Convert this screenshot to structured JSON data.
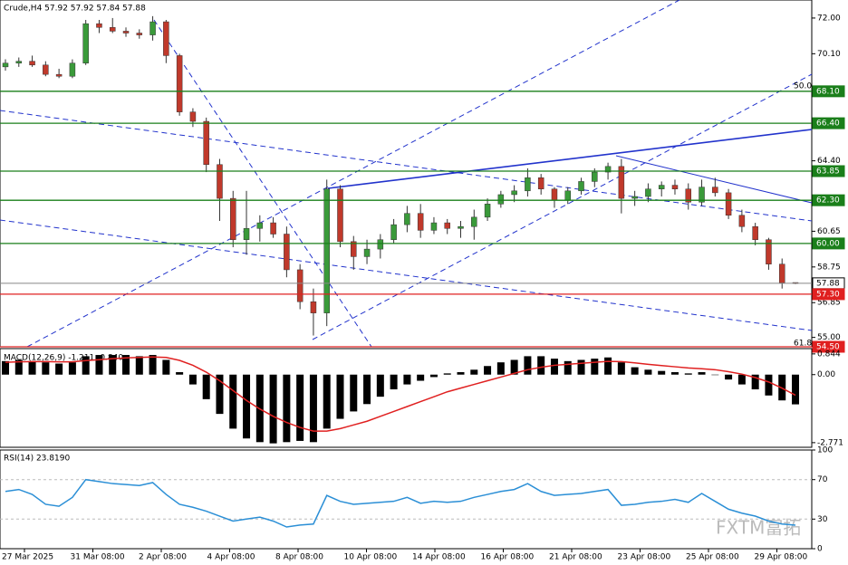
{
  "header": {
    "title": "Crude,H4  57.92 57.92 57.84 57.88",
    "watermark": "FXTM富拓"
  },
  "x_axis": {
    "labels": [
      "27 Mar 2025",
      "31 Mar 08:00",
      "2 Apr 08:00",
      "4 Apr 08:00",
      "8 Apr 08:00",
      "10 Apr 08:00",
      "14 Apr 08:00",
      "16 Apr 08:00",
      "21 Apr 08:00",
      "23 Apr 08:00",
      "25 Apr 08:00",
      "29 Apr 08:00"
    ]
  },
  "chart_data": [
    {
      "type": "candlestick",
      "bull_color": "#3a9a3a",
      "bear_color": "#c0392b",
      "ylim": [
        54.5,
        72.96
      ],
      "yticks": [
        {
          "value": 72,
          "label": "72.00"
        },
        {
          "value": 70.1,
          "label": "70.10"
        },
        {
          "value": 64.4,
          "label": "64.40"
        },
        {
          "value": 60.65,
          "label": "60.65"
        },
        {
          "value": 58.75,
          "label": "58.75"
        },
        {
          "value": 56.85,
          "label": "56.85"
        },
        {
          "value": 55,
          "label": "55.00"
        }
      ],
      "levels": [
        {
          "value": 68.1,
          "label": "68.10",
          "color": "#1a7f1a"
        },
        {
          "value": 66.4,
          "label": "66.40",
          "color": "#1a7f1a"
        },
        {
          "value": 63.85,
          "label": "63.85",
          "color": "#1a7f1a"
        },
        {
          "value": 62.3,
          "label": "62.30",
          "color": "#1a7f1a"
        },
        {
          "value": 60,
          "label": "60.00",
          "color": "#1a7f1a"
        },
        {
          "value": 57.88,
          "label": "57.88",
          "color": "#000000"
        },
        {
          "value": 57.3,
          "label": "57.30",
          "color": "#e02020"
        },
        {
          "value": 54.5,
          "label": "54.50",
          "color": "#e02020"
        }
      ],
      "annotations": [
        "50.0",
        "61.8"
      ],
      "ohlc": [
        [
          69.4,
          69.8,
          69.2,
          69.6
        ],
        [
          69.6,
          69.9,
          69.4,
          69.7
        ],
        [
          69.7,
          70.0,
          69.4,
          69.5
        ],
        [
          69.5,
          69.7,
          68.9,
          69.0
        ],
        [
          69.0,
          69.3,
          68.8,
          68.9
        ],
        [
          68.9,
          69.8,
          68.8,
          69.6
        ],
        [
          69.6,
          71.9,
          69.5,
          71.7
        ],
        [
          71.7,
          71.9,
          71.2,
          71.5
        ],
        [
          71.5,
          72.0,
          71.2,
          71.3
        ],
        [
          71.3,
          71.5,
          71.0,
          71.2
        ],
        [
          71.2,
          71.4,
          70.9,
          71.1
        ],
        [
          71.1,
          72.1,
          70.8,
          71.8
        ],
        [
          71.8,
          71.9,
          69.6,
          70.0
        ],
        [
          70.0,
          70.1,
          66.8,
          67.0
        ],
        [
          67.0,
          67.2,
          66.2,
          66.5
        ],
        [
          66.5,
          66.7,
          63.8,
          64.2
        ],
        [
          64.2,
          64.5,
          61.2,
          62.4
        ],
        [
          62.4,
          62.8,
          59.8,
          60.2
        ],
        [
          60.2,
          62.8,
          59.4,
          60.8
        ],
        [
          60.8,
          61.5,
          60.1,
          61.1
        ],
        [
          61.1,
          61.4,
          60.3,
          60.5
        ],
        [
          60.5,
          60.9,
          58.2,
          58.6
        ],
        [
          58.6,
          58.9,
          56.5,
          56.9
        ],
        [
          56.9,
          57.6,
          55.1,
          56.3
        ],
        [
          56.3,
          63.4,
          55.6,
          62.9
        ],
        [
          62.9,
          63.1,
          59.8,
          60.1
        ],
        [
          60.1,
          60.4,
          58.6,
          59.3
        ],
        [
          59.3,
          60.2,
          58.9,
          59.7
        ],
        [
          59.7,
          60.5,
          59.2,
          60.2
        ],
        [
          60.2,
          61.3,
          60.0,
          61.0
        ],
        [
          61.0,
          62.0,
          60.6,
          61.6
        ],
        [
          61.6,
          62.1,
          60.3,
          60.7
        ],
        [
          60.7,
          61.4,
          60.5,
          61.1
        ],
        [
          61.1,
          61.3,
          60.5,
          60.8
        ],
        [
          60.8,
          61.2,
          60.3,
          60.9
        ],
        [
          60.9,
          61.8,
          60.2,
          61.4
        ],
        [
          61.4,
          62.4,
          61.2,
          62.1
        ],
        [
          62.1,
          62.8,
          61.9,
          62.6
        ],
        [
          62.6,
          63.1,
          62.2,
          62.8
        ],
        [
          62.8,
          64.0,
          62.5,
          63.5
        ],
        [
          63.5,
          63.7,
          62.6,
          62.9
        ],
        [
          62.9,
          63.0,
          61.9,
          62.3
        ],
        [
          62.3,
          63.0,
          62.1,
          62.8
        ],
        [
          62.8,
          63.5,
          62.6,
          63.3
        ],
        [
          63.3,
          64.0,
          63.0,
          63.8
        ],
        [
          63.8,
          64.3,
          63.4,
          64.1
        ],
        [
          64.1,
          64.5,
          61.6,
          62.4
        ],
        [
          62.4,
          62.8,
          62.0,
          62.5
        ],
        [
          62.5,
          63.2,
          62.2,
          62.9
        ],
        [
          62.9,
          63.3,
          62.5,
          63.1
        ],
        [
          63.1,
          63.4,
          62.6,
          62.9
        ],
        [
          62.9,
          63.2,
          61.8,
          62.2
        ],
        [
          62.2,
          63.4,
          62.0,
          63.0
        ],
        [
          63.0,
          63.5,
          62.5,
          62.7
        ],
        [
          62.7,
          62.9,
          61.3,
          61.5
        ],
        [
          61.5,
          61.8,
          60.6,
          60.9
        ],
        [
          60.9,
          61.1,
          59.9,
          60.2
        ],
        [
          60.2,
          60.3,
          58.6,
          58.9
        ],
        [
          58.9,
          59.2,
          57.6,
          57.9
        ],
        [
          57.92,
          57.92,
          57.84,
          57.88
        ]
      ]
    },
    {
      "type": "macd",
      "title": "MACD(12,26,9) -1.211 -0.840",
      "ylim": [
        -2.96,
        1.06
      ],
      "yticks": [
        0.844,
        {
          "value": 0,
          "label": "0.00"
        },
        -2.771
      ],
      "series": [
        {
          "name": "MACD",
          "color": "#000000",
          "values": [
            0.55,
            0.6,
            0.55,
            0.5,
            0.45,
            0.5,
            0.75,
            0.8,
            0.8,
            0.8,
            0.75,
            0.8,
            0.6,
            0.1,
            -0.4,
            -1.0,
            -1.6,
            -2.2,
            -2.6,
            -2.75,
            -2.8,
            -2.75,
            -2.7,
            -2.75,
            -2.2,
            -1.8,
            -1.5,
            -1.2,
            -0.9,
            -0.6,
            -0.4,
            -0.25,
            -0.1,
            0.05,
            0.1,
            0.2,
            0.35,
            0.5,
            0.6,
            0.75,
            0.75,
            0.65,
            0.55,
            0.6,
            0.65,
            0.7,
            0.5,
            0.3,
            0.2,
            0.15,
            0.1,
            0.05,
            0.1,
            0.0,
            -0.2,
            -0.4,
            -0.6,
            -0.85,
            -1.05,
            -1.211
          ]
        },
        {
          "name": "Signal",
          "color": "#e02020",
          "values": [
            0.5,
            0.52,
            0.53,
            0.53,
            0.52,
            0.52,
            0.57,
            0.61,
            0.65,
            0.68,
            0.7,
            0.72,
            0.7,
            0.58,
            0.38,
            0.1,
            -0.25,
            -0.65,
            -1.05,
            -1.4,
            -1.7,
            -1.95,
            -2.15,
            -2.3,
            -2.3,
            -2.2,
            -2.05,
            -1.9,
            -1.7,
            -1.5,
            -1.3,
            -1.1,
            -0.9,
            -0.7,
            -0.55,
            -0.4,
            -0.25,
            -0.1,
            0.05,
            0.2,
            0.3,
            0.38,
            0.42,
            0.46,
            0.5,
            0.54,
            0.53,
            0.48,
            0.42,
            0.37,
            0.32,
            0.27,
            0.24,
            0.2,
            0.12,
            0.02,
            -0.12,
            -0.3,
            -0.55,
            -0.84
          ]
        }
      ]
    },
    {
      "type": "line",
      "title": "RSI(14) 23.8190",
      "ylim": [
        0,
        100
      ],
      "yticks": [
        100,
        70,
        30,
        0
      ],
      "color": "#2b8fd6",
      "values": [
        58,
        60,
        55,
        45,
        43,
        52,
        70,
        68,
        66,
        65,
        64,
        67,
        55,
        45,
        42,
        38,
        33,
        28,
        30,
        32,
        28,
        22,
        24,
        25,
        54,
        48,
        45,
        46,
        47,
        48,
        52,
        46,
        48,
        47,
        48,
        52,
        55,
        58,
        60,
        66,
        58,
        54,
        55,
        56,
        58,
        60,
        44,
        45,
        47,
        48,
        50,
        47,
        56,
        48,
        40,
        36,
        33,
        28,
        25,
        23.819
      ]
    }
  ]
}
